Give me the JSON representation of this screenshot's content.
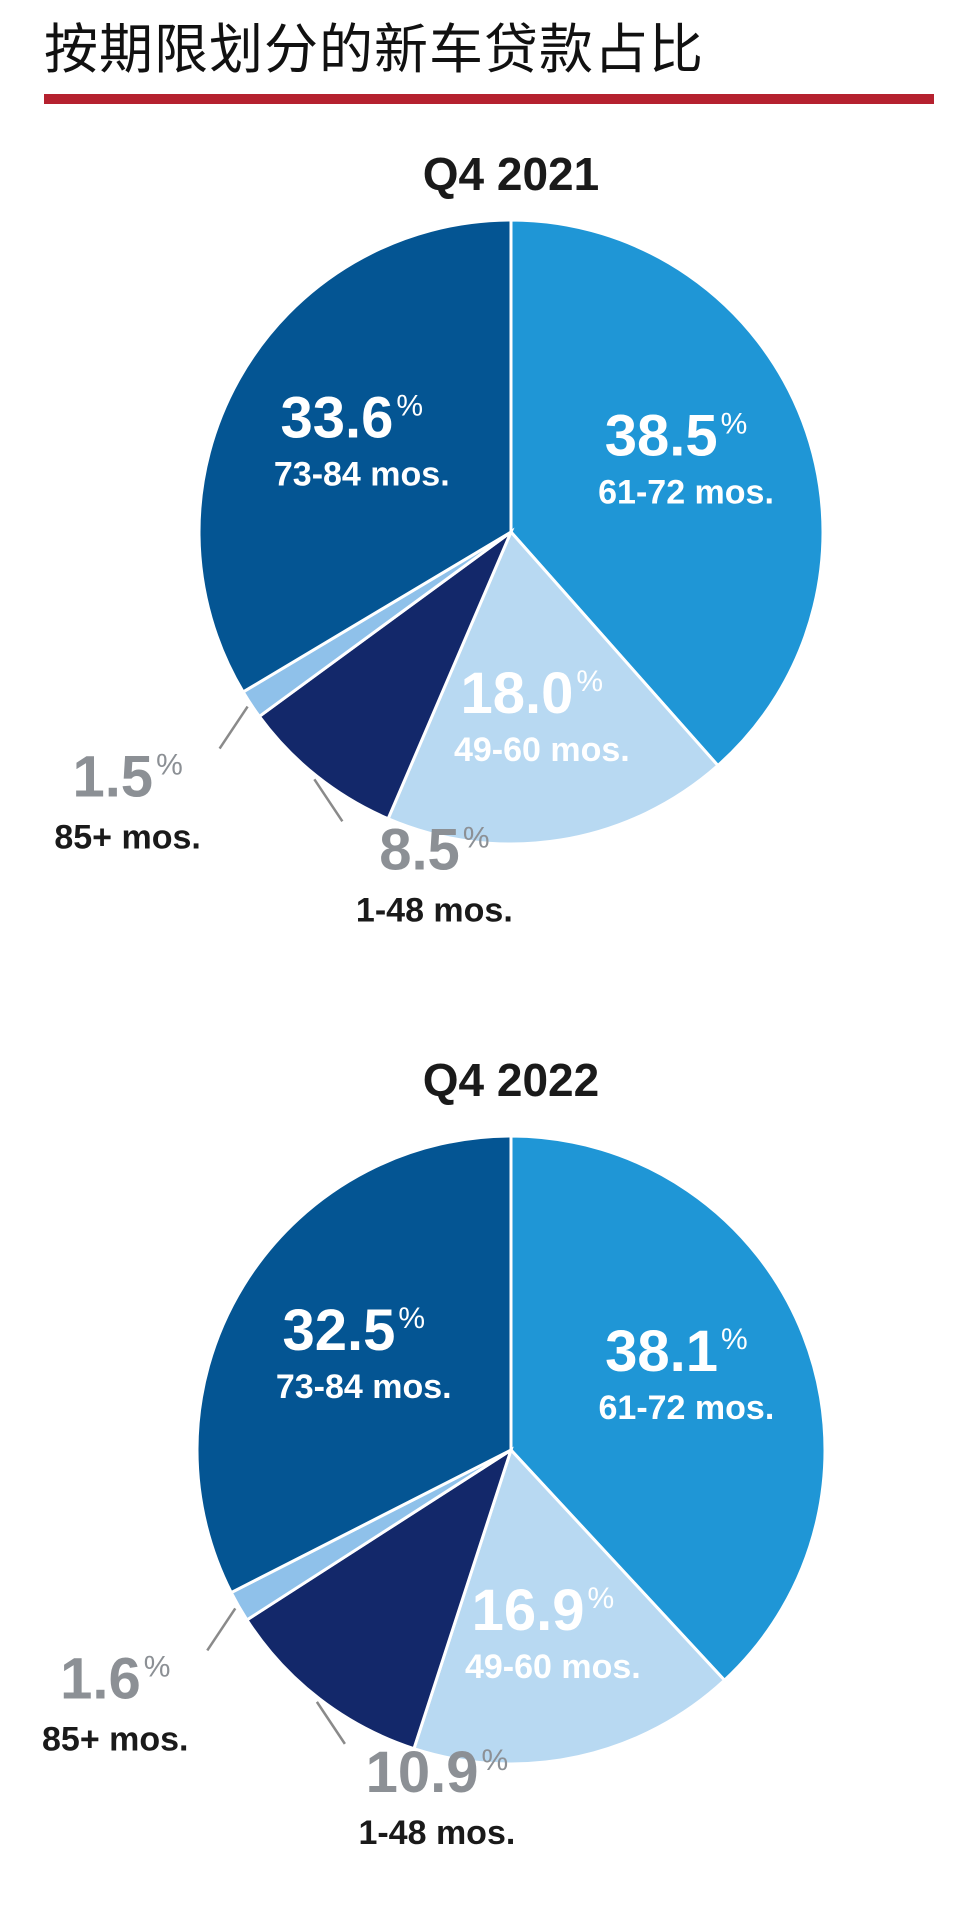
{
  "header": {
    "title": "按期限划分的新车贷款占比"
  },
  "colors": {
    "title_rule": "#b5212f",
    "slices": {
      "61-72 mos.": "#1f96d6",
      "49-60 mos.": "#b8d9f2",
      "1-48 mos.": "#13286a",
      "85+ mos.": "#8fc1ea",
      "73-84 mos.": "#045593"
    },
    "inside_text": "#ffffff",
    "outside_pct": "#8c9095",
    "outside_cat": "#1a1a1a"
  },
  "chart_data": [
    {
      "type": "pie",
      "title": "Q4 2021",
      "labels": [
        "61-72 mos.",
        "49-60 mos.",
        "1-48 mos.",
        "85+ mos.",
        "73-84 mos."
      ],
      "values": [
        38.5,
        18.0,
        8.5,
        1.5,
        33.6
      ],
      "value_labels": [
        "38.5",
        "18.0",
        "8.5",
        "1.5",
        "33.6"
      ],
      "percent_symbol": "%"
    },
    {
      "type": "pie",
      "title": "Q4 2022",
      "labels": [
        "61-72 mos.",
        "49-60 mos.",
        "1-48 mos.",
        "85+ mos.",
        "73-84 mos."
      ],
      "values": [
        38.1,
        16.9,
        10.9,
        1.6,
        32.5
      ],
      "value_labels": [
        "38.1",
        "16.9",
        "10.9",
        "1.6",
        "32.5"
      ],
      "percent_symbol": "%"
    }
  ]
}
